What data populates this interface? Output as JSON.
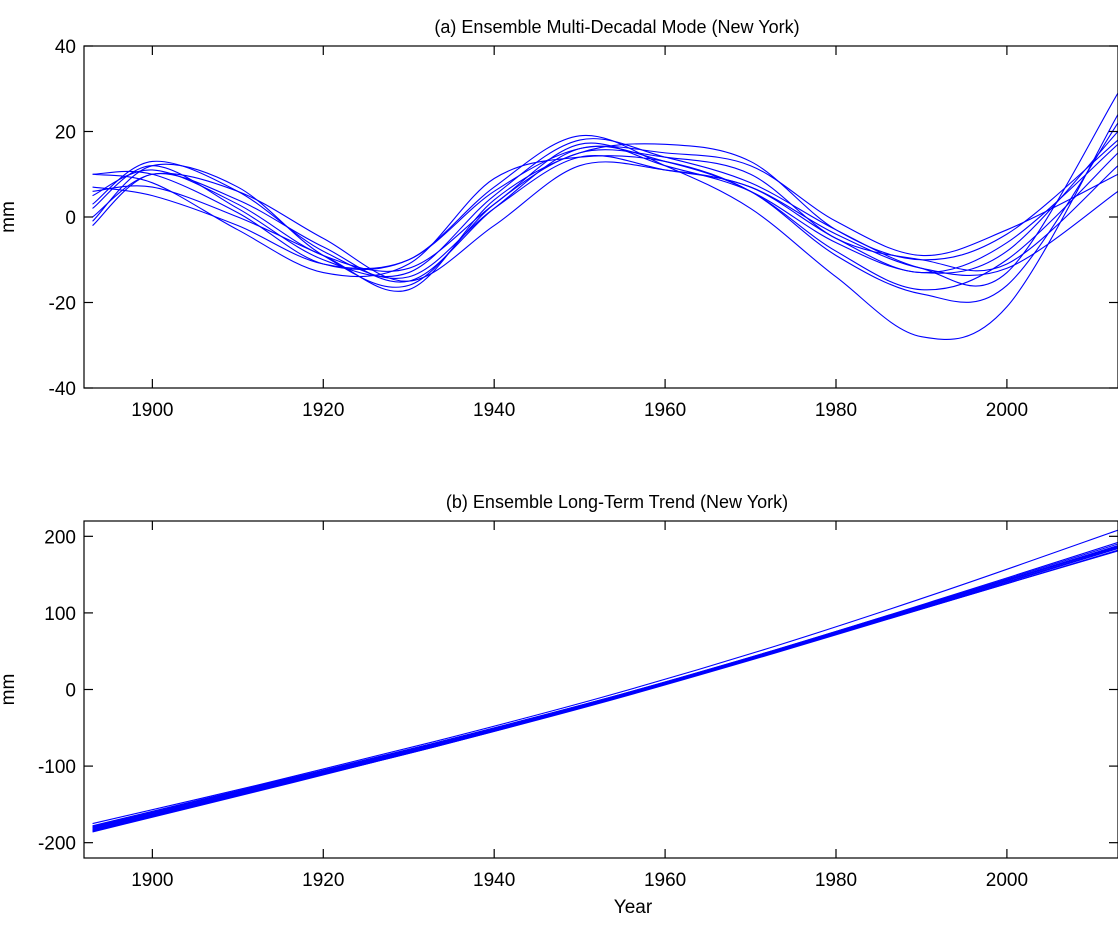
{
  "chart_data": [
    {
      "type": "line",
      "title": "(a) Ensemble Multi-Decadal Mode (New York)",
      "xlabel": "",
      "ylabel": "mm",
      "xlim": [
        1892,
        2013
      ],
      "ylim": [
        -40,
        40
      ],
      "xticks": [
        1900,
        1920,
        1940,
        1960,
        1980,
        2000
      ],
      "yticks": [
        -40,
        -20,
        0,
        20,
        40
      ],
      "grid": false,
      "color": "#0000ff",
      "x": [
        1893,
        1900,
        1910,
        1920,
        1930,
        1940,
        1950,
        1960,
        1970,
        1980,
        1990,
        2000,
        2013
      ],
      "series": [
        {
          "values": [
            -2,
            10,
            4,
            -7,
            -15,
            2,
            16,
            13,
            6,
            -8,
            -17,
            -10,
            15
          ]
        },
        {
          "values": [
            2,
            12,
            2,
            -10,
            -13,
            5,
            18,
            14,
            8,
            -3,
            -12,
            -13,
            29
          ]
        },
        {
          "values": [
            5,
            11,
            3,
            -9,
            -12,
            3,
            17,
            12,
            6,
            -6,
            -13,
            -8,
            20
          ]
        },
        {
          "values": [
            10,
            10,
            1,
            -11,
            -10,
            7,
            19,
            12,
            2,
            -14,
            -28,
            -21,
            24
          ]
        },
        {
          "values": [
            7,
            5,
            -2,
            -11,
            -10,
            6,
            16,
            15,
            12,
            -1,
            -9,
            -3,
            10
          ]
        },
        {
          "values": [
            0,
            10,
            6,
            -5,
            -15,
            -2,
            12,
            11,
            7,
            -4,
            -12,
            -12,
            6
          ]
        },
        {
          "values": [
            3,
            13,
            6,
            -8,
            -14,
            2,
            14,
            11,
            7,
            -5,
            -13,
            -6,
            17
          ]
        },
        {
          "values": [
            10,
            8,
            -3,
            -13,
            -11,
            9,
            14,
            13,
            6,
            -9,
            -18,
            -16,
            22
          ]
        },
        {
          "values": [
            6,
            7,
            0,
            -9,
            -17,
            4,
            15,
            17,
            13,
            -3,
            -10,
            -4,
            18
          ]
        },
        {
          "values": [
            -1,
            12,
            7,
            -9,
            -16,
            3,
            15,
            14,
            10,
            -5,
            -10,
            -11,
            12
          ]
        }
      ]
    },
    {
      "type": "line",
      "title": "(b) Ensemble Long-Term Trend (New York)",
      "xlabel": "Year",
      "ylabel": "mm",
      "xlim": [
        1892,
        2013
      ],
      "ylim": [
        -220,
        220
      ],
      "xticks": [
        1900,
        1920,
        1940,
        1960,
        1980,
        2000
      ],
      "yticks": [
        -200,
        -100,
        0,
        100,
        200
      ],
      "grid": false,
      "color": "#0000ff",
      "x": [
        1893,
        1913,
        1933,
        1953,
        1973,
        1993,
        2013
      ],
      "series": [
        {
          "values": [
            -175,
            -123,
            -68,
            -9,
            57,
            130,
            208
          ]
        },
        {
          "values": [
            -178,
            -124,
            -70,
            -12,
            52,
            120,
            190
          ]
        },
        {
          "values": [
            -180,
            -126,
            -71,
            -13,
            51,
            119,
            188
          ]
        },
        {
          "values": [
            -182,
            -128,
            -72,
            -13,
            51,
            118,
            187
          ]
        },
        {
          "values": [
            -183,
            -129,
            -73,
            -14,
            50,
            117,
            185
          ]
        },
        {
          "values": [
            -184,
            -130,
            -74,
            -15,
            49,
            116,
            184
          ]
        },
        {
          "values": [
            -185,
            -130,
            -75,
            -15,
            49,
            115,
            182
          ]
        },
        {
          "values": [
            -186,
            -131,
            -75,
            -16,
            48,
            115,
            181
          ]
        },
        {
          "values": [
            -179,
            -125,
            -70,
            -12,
            52,
            121,
            192
          ]
        },
        {
          "values": [
            -181,
            -127,
            -71,
            -13,
            51,
            119,
            186
          ]
        }
      ]
    }
  ]
}
